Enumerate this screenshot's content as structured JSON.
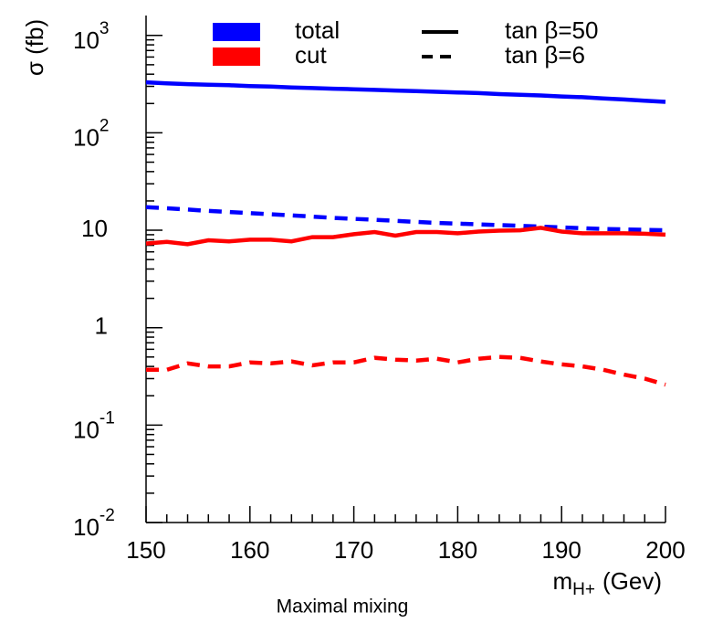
{
  "chart_data": {
    "type": "line",
    "y_label": "σ (fb)",
    "x_label": "m",
    "x_label_sub": "H+",
    "x_label_unit": "(Gev)",
    "caption": "Maximal mixing",
    "log_y": true,
    "xlim": [
      150,
      200
    ],
    "xticks": [
      150,
      160,
      170,
      180,
      190,
      200
    ],
    "ylim": [
      0.01,
      1600
    ],
    "yticks": [
      {
        "value": 0.01,
        "label": "10",
        "exponent": "-2"
      },
      {
        "value": 0.1,
        "label": "10",
        "exponent": "-1"
      },
      1,
      10,
      {
        "value": 100,
        "label": "10",
        "exponent": "2"
      },
      {
        "value": 1000,
        "label": "10",
        "exponent": "3"
      }
    ],
    "legend": {
      "colors": [
        {
          "name": "total",
          "color": "#0000ff"
        },
        {
          "name": "cut",
          "color": "#ff0000"
        }
      ],
      "styles": [
        {
          "name": "tan β=50",
          "dash": "solid"
        },
        {
          "name": "tan β=6",
          "dash": "dashed"
        }
      ]
    },
    "x": [
      150,
      152,
      154,
      156,
      158,
      160,
      162,
      164,
      166,
      168,
      170,
      172,
      174,
      176,
      178,
      180,
      182,
      184,
      186,
      188,
      190,
      192,
      194,
      196,
      198,
      200
    ],
    "series": [
      {
        "color": "#0000ff",
        "dash": "solid",
        "values": [
          330,
          322,
          316,
          312,
          308,
          302,
          298,
          292,
          288,
          284,
          280,
          276,
          272,
          268,
          264,
          260,
          256,
          250,
          246,
          242,
          236,
          232,
          226,
          220,
          214,
          208
        ]
      },
      {
        "color": "#0000ff",
        "dash": "dashed",
        "values": [
          17.3,
          16.8,
          16.3,
          15.8,
          15.4,
          15.0,
          14.6,
          14.2,
          13.8,
          13.4,
          13.1,
          12.8,
          12.5,
          12.2,
          11.9,
          11.7,
          11.5,
          11.3,
          11.1,
          10.9,
          10.7,
          10.5,
          10.3,
          10.2,
          10.1,
          10.0
        ]
      },
      {
        "color": "#ff0000",
        "dash": "solid",
        "values": [
          7.3,
          7.6,
          7.2,
          7.9,
          7.7,
          8.0,
          8.0,
          7.7,
          8.5,
          8.5,
          9.1,
          9.6,
          8.8,
          9.6,
          9.6,
          9.3,
          9.7,
          9.9,
          10.0,
          10.6,
          9.7,
          9.3,
          9.3,
          9.3,
          9.2,
          9.0
        ]
      },
      {
        "color": "#ff0000",
        "dash": "dashed",
        "values": [
          0.37,
          0.37,
          0.43,
          0.4,
          0.4,
          0.44,
          0.43,
          0.45,
          0.41,
          0.44,
          0.44,
          0.49,
          0.47,
          0.46,
          0.48,
          0.44,
          0.48,
          0.5,
          0.49,
          0.45,
          0.42,
          0.4,
          0.37,
          0.33,
          0.3,
          0.26
        ]
      }
    ]
  }
}
